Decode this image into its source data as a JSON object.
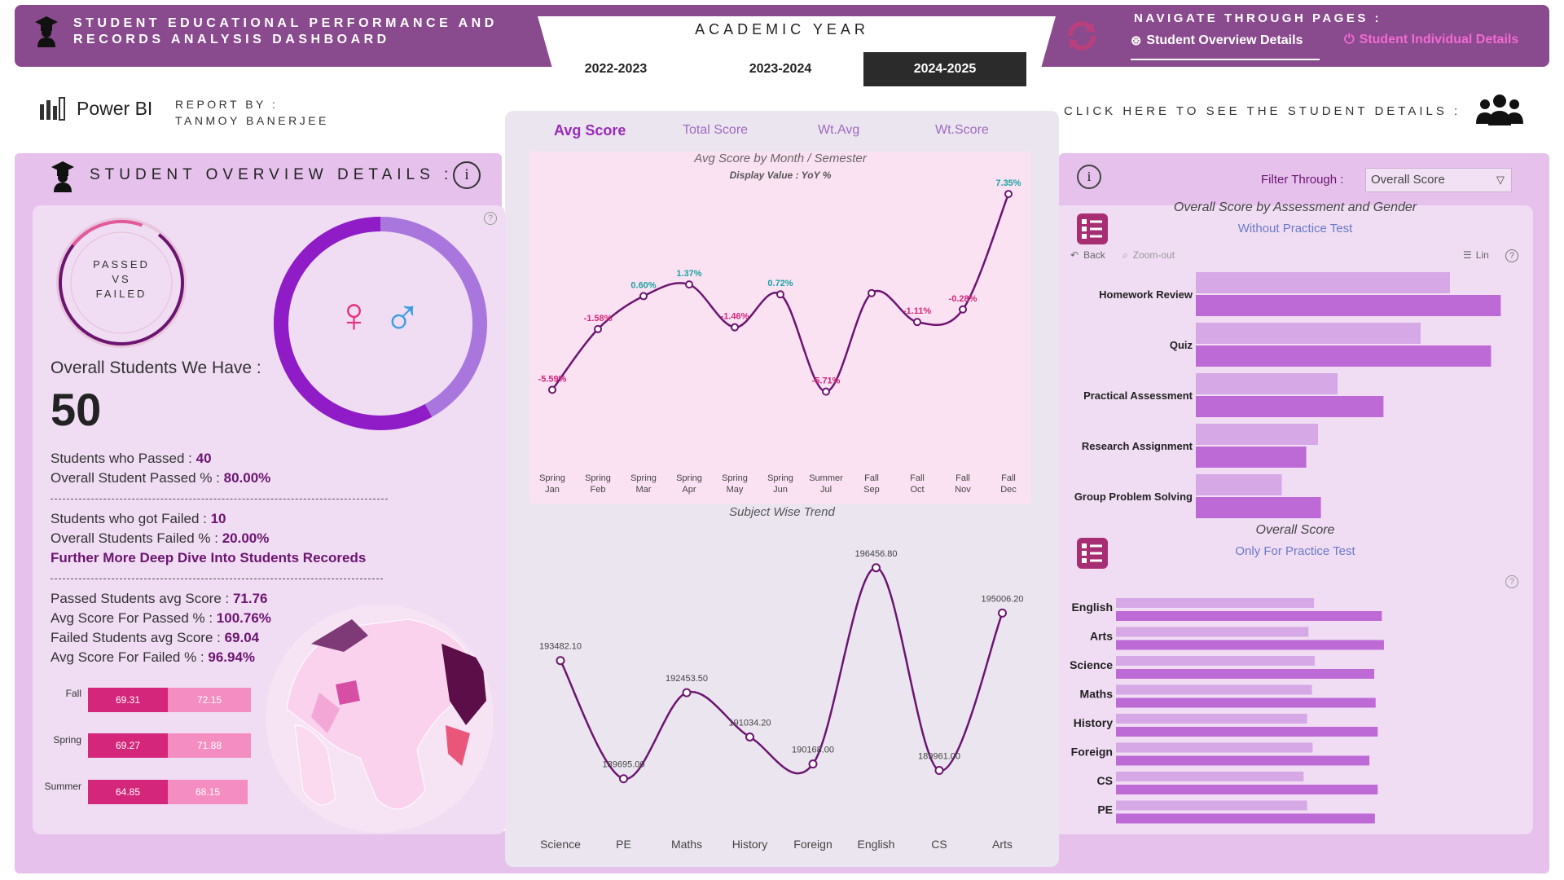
{
  "header": {
    "title_line1": "STUDENT EDUCATIONAL PERFORMANCE AND",
    "title_line2": "RECORDS ANALYSIS DASHBOARD",
    "academic_year_label": "ACADEMIC YEAR",
    "years": [
      "2022-2023",
      "2023-2024",
      "2024-2025"
    ],
    "selected_year": "2024-2025",
    "navigate_label": "NAVIGATE THROUGH PAGES :",
    "nav_links": [
      "Student Overview Details",
      "Student Individual Details"
    ]
  },
  "brand": {
    "name": "Power BI",
    "report_by_label": "REPORT BY :",
    "author": "TANMOY BANERJEE"
  },
  "click_hint": "CLICK HERE TO SEE THE STUDENT  DETAILS :",
  "measure_tabs": [
    "Avg Score",
    "Total Score",
    "Wt.Avg",
    "Wt.Score"
  ],
  "selected_measure": "Avg Score",
  "overview": {
    "title": "STUDENT  OVERVIEW  DETAILS :",
    "passed_vs_failed": [
      "PASSED",
      "VS",
      "FAILED"
    ],
    "overall_label": "Overall Students We Have :",
    "overall_value": "50",
    "passed_label": "Students who Passed : ",
    "passed_value": "40",
    "passed_pct_label": "Overall Student Passed % : ",
    "passed_pct_value": "80.00%",
    "failed_label": "Students who got Failed : ",
    "failed_value": "10",
    "failed_pct_label": "Overall Students Failed % : ",
    "failed_pct_value": "20.00%",
    "deep_dive": "Further More Deep Dive Into Students Recoreds",
    "passed_avg_label": "Passed Students avg Score : ",
    "passed_avg_value": "71.76",
    "avg_passed_pct_label": "Avg Score For Passed % : ",
    "avg_passed_pct_value": "100.76%",
    "failed_avg_label": "Failed Students avg Score : ",
    "failed_avg_value": "69.04",
    "avg_failed_pct_label": "Avg Score For Failed % : ",
    "avg_failed_pct_value": "96.94%",
    "gender_female_share": 0.58
  },
  "semester_bars": [
    {
      "label": "Fall",
      "a": "69.31",
      "b": "72.15"
    },
    {
      "label": "Spring",
      "a": "69.27",
      "b": "71.88"
    },
    {
      "label": "Summer",
      "a": "64.85",
      "b": "68.15"
    }
  ],
  "right": {
    "filter_label": "Filter Through :",
    "filter_value": "Overall Score",
    "chart1_title": "Overall Score by Assessment and Gender",
    "chart1_sub": "Without Practice Test",
    "back": "Back",
    "zoom": "Zoom-out",
    "lin": "Lin",
    "chart2_title": "Overall Score",
    "chart2_sub": "Only For Practice Test"
  },
  "colors": {
    "accent": "#8a4a8e",
    "purple": "#7a2079",
    "bar_light": "#d6a8e6",
    "bar_dark": "#bd6ad7",
    "pink": "#d4267a"
  },
  "chart_data": [
    {
      "type": "line",
      "title": "Avg Score by Month / Semester",
      "subtitle": "Display Value : YoY %",
      "categories": [
        [
          "Spring",
          "Jan"
        ],
        [
          "Spring",
          "Feb"
        ],
        [
          "Spring",
          "Mar"
        ],
        [
          "Spring",
          "Apr"
        ],
        [
          "Spring",
          "May"
        ],
        [
          "Spring",
          "Jun"
        ],
        [
          "Summer",
          "Jul"
        ],
        [
          "Fall",
          "Sep"
        ],
        [
          "Fall",
          "Oct"
        ],
        [
          "Fall",
          "Nov"
        ],
        [
          "Fall",
          "Dec"
        ]
      ],
      "values": [
        -5.59,
        -1.58,
        0.6,
        1.37,
        -1.46,
        0.72,
        -5.71,
        0.8,
        -1.11,
        -0.28,
        7.35
      ],
      "labels": [
        "-5.59%",
        "-1.58%",
        "0.60%",
        "1.37%",
        "-1.46%",
        "0.72%",
        "-5.71%",
        "",
        "-1.11%",
        "-0.28%",
        "7.35%"
      ],
      "ylim": [
        -6,
        8
      ]
    },
    {
      "type": "line",
      "title": "Subject Wise Trend",
      "categories": [
        "Science",
        "PE",
        "Maths",
        "History",
        "Foreign",
        "English",
        "CS",
        "Arts"
      ],
      "values": [
        193482.1,
        189695.0,
        192453.5,
        191034.2,
        190168.0,
        196456.8,
        189961.0,
        195006.2
      ],
      "labels": [
        "193482.10",
        "189695.00",
        "192453.50",
        "191034.20",
        "190168.00",
        "196456.80",
        "189961.00",
        "195006.20"
      ],
      "ylim": [
        188800,
        197000
      ]
    },
    {
      "type": "bar",
      "title": "Overall Score by Assessment and Gender",
      "subtitle": "Without Practice Test",
      "categories": [
        "Homework Review",
        "Quiz",
        "Practical Assessment",
        "Research Assignment",
        "Group Problem Solving"
      ],
      "series": [
        {
          "values": [
            260,
            230,
            145,
            125,
            88
          ]
        },
        {
          "values": [
            312,
            302,
            192,
            113,
            128
          ]
        }
      ],
      "xlim": [
        0,
        400
      ]
    },
    {
      "type": "bar",
      "title": "Overall Score",
      "subtitle": "Only For Practice Test",
      "categories": [
        "English",
        "Arts",
        "Science",
        "Maths",
        "History",
        "Foreign",
        "CS",
        "PE"
      ],
      "series": [
        {
          "values": [
            286,
            278,
            287,
            283,
            276,
            284,
            271,
            276
          ]
        },
        {
          "values": [
            384,
            387,
            373,
            375,
            378,
            366,
            378,
            374
          ]
        }
      ],
      "xlim": [
        0,
        480
      ]
    }
  ]
}
